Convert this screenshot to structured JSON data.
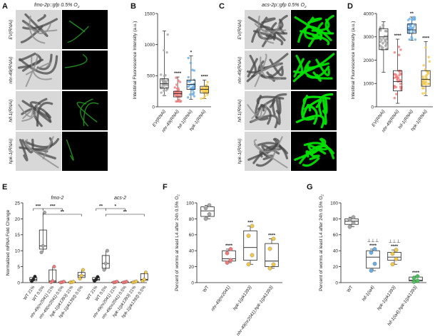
{
  "panel_letters": [
    "A",
    "B",
    "C",
    "D",
    "E",
    "F",
    "G"
  ],
  "micrographs": {
    "A": {
      "title": "fmo-2p::gfp 0.5% O2",
      "rows": [
        "EV(RNAi)",
        "nhr-49(RNAi)",
        "hif-1(RNAi)",
        "hpk-1(RNAi)"
      ]
    },
    "C": {
      "title": "acs-2p::gfp 0.5% O2",
      "rows": [
        "EV(RNAi)",
        "nhr-49(RNAi)",
        "hif-1(RNAi)",
        "hpk-1(RNAi)"
      ]
    }
  },
  "colors": {
    "gray": "#a6a6a6",
    "pink": "#f07a7a",
    "blue": "#6aaee6",
    "yellow": "#f2c84b",
    "green": "#4bbf5a",
    "gfp": "#00e000"
  },
  "chart_data": [
    {
      "panel": "B",
      "type": "box",
      "categories": [
        "EV(RNAi)",
        "nhr-49(RNAi)",
        "hif-1(RNAi)",
        "hpk-1(RNAi)"
      ],
      "ylabel": "Intestinal Fluorescence Intensity (a.u.)",
      "ylim": [
        0,
        1500
      ],
      "yticks": [
        0,
        500,
        1000,
        1500
      ],
      "boxes": [
        {
          "min": 180,
          "q1": 300,
          "median": 370,
          "q3": 450,
          "max": 1220
        },
        {
          "min": 80,
          "q1": 160,
          "median": 210,
          "q3": 250,
          "max": 480
        },
        {
          "min": 120,
          "q1": 280,
          "median": 360,
          "q3": 430,
          "max": 820
        },
        {
          "min": 130,
          "q1": 220,
          "median": 280,
          "q3": 330,
          "max": 430
        }
      ],
      "significance": [
        "",
        "****",
        "*",
        "****"
      ]
    },
    {
      "panel": "D",
      "type": "box",
      "categories": [
        "EV(RNAi)",
        "nhr-49(RNAi)",
        "hif-1(RNAi)",
        "hpk-1(RNAi)"
      ],
      "ylabel": "Intestinal Fluorescence Intensity (a.u.)",
      "ylim": [
        0,
        4000
      ],
      "yticks": [
        0,
        1000,
        2000,
        3000,
        4000
      ],
      "boxes": [
        {
          "min": 1480,
          "q1": 2450,
          "median": 3000,
          "q3": 3350,
          "max": 3650
        },
        {
          "min": 150,
          "q1": 680,
          "median": 1080,
          "q3": 1550,
          "max": 2900
        },
        {
          "min": 2850,
          "q1": 3150,
          "median": 3300,
          "q3": 3550,
          "max": 3850
        },
        {
          "min": 480,
          "q1": 880,
          "median": 1180,
          "q3": 1550,
          "max": 2800
        }
      ],
      "significance": [
        "",
        "****",
        "**",
        "****"
      ]
    },
    {
      "panel": "E",
      "type": "box",
      "group_titles": [
        "fmo-2",
        "acs-2"
      ],
      "categories": [
        "WT 21%",
        "WT 0.5%",
        "nhr-49(nr2041) 21%",
        "nhr-49(nr2041) 0.5%",
        "hpk-1(pk1393) 21%",
        "hpk-1(pk1393) 0.5%"
      ],
      "ylabel": "Normalized mRNA Fold Change",
      "ylim": [
        0,
        25
      ],
      "yticks": [
        0,
        5,
        10,
        15,
        20,
        25
      ],
      "groups": [
        {
          "name": "fmo-2",
          "boxes": [
            {
              "min": 0.4,
              "q1": 0.6,
              "median": 1.0,
              "q3": 1.6,
              "max": 1.9
            },
            {
              "min": 9.5,
              "q1": 10.5,
              "median": 11.5,
              "q3": 16.5,
              "max": 22.0
            },
            {
              "min": 0.1,
              "q1": 0.2,
              "median": 0.5,
              "q3": 4.0,
              "max": 5.0
            },
            {
              "min": 0.05,
              "q1": 0.1,
              "median": 0.15,
              "q3": 0.2,
              "max": 0.3
            },
            {
              "min": 0.05,
              "q1": 0.1,
              "median": 0.15,
              "q3": 0.2,
              "max": 0.3
            },
            {
              "min": 1.2,
              "q1": 1.6,
              "median": 2.2,
              "q3": 3.2,
              "max": 4.0
            }
          ]
        },
        {
          "name": "acs-2",
          "boxes": [
            {
              "min": 0.5,
              "q1": 0.7,
              "median": 1.0,
              "q3": 1.6,
              "max": 1.8
            },
            {
              "min": 4.0,
              "q1": 4.5,
              "median": 6.0,
              "q3": 8.5,
              "max": 10.0
            },
            {
              "min": 0.05,
              "q1": 0.1,
              "median": 0.15,
              "q3": 0.2,
              "max": 0.3
            },
            {
              "min": 0.05,
              "q1": 0.1,
              "median": 0.15,
              "q3": 0.2,
              "max": 0.3
            },
            {
              "min": 0.05,
              "q1": 0.1,
              "median": 0.2,
              "q3": 0.3,
              "max": 0.4
            },
            {
              "min": 0.5,
              "q1": 0.7,
              "median": 1.0,
              "q3": 2.8,
              "max": 3.2
            }
          ]
        }
      ],
      "brackets": [
        "***",
        "***",
        "**",
        "**",
        "*",
        "**"
      ]
    },
    {
      "panel": "F",
      "type": "box",
      "categories": [
        "WT",
        "nhr-49(nr2041)",
        "hpk-1(pk1393)",
        "nhr-49(nr2041);hpk-1(pk1393)"
      ],
      "ylabel": "Percent of worms at least L4 after 24h 0.5% O2",
      "ylim": [
        0,
        100
      ],
      "yticks": [
        0,
        20,
        40,
        60,
        80,
        100
      ],
      "boxes": [
        {
          "min": 80,
          "q1": 83,
          "median": 90,
          "q3": 95,
          "max": 97
        },
        {
          "min": 25,
          "q1": 27,
          "median": 30,
          "q3": 40,
          "max": 42
        },
        {
          "min": 23,
          "q1": 28,
          "median": 44,
          "q3": 65,
          "max": 71
        },
        {
          "min": 18,
          "q1": 20,
          "median": 27,
          "q3": 49,
          "max": 55
        }
      ],
      "significance": [
        "",
        "****",
        "***",
        "****"
      ]
    },
    {
      "panel": "G",
      "type": "box",
      "categories": [
        "WT",
        "hif-1(ia4)",
        "hpk-1(pk1393)",
        "hif-1(ia4);hpk-1(pk1393)"
      ],
      "ylabel": "Percent of worms at least L4 after 24h 0.5% O2",
      "ylim": [
        0,
        100
      ],
      "yticks": [
        0,
        20,
        40,
        60,
        80,
        100
      ],
      "boxes": [
        {
          "min": 70,
          "q1": 73,
          "median": 77,
          "q3": 80,
          "max": 82
        },
        {
          "min": 15,
          "q1": 18,
          "median": 32,
          "q3": 40,
          "max": 42
        },
        {
          "min": 23,
          "q1": 28,
          "median": 32,
          "q3": 38,
          "max": 41
        },
        {
          "min": 1,
          "q1": 2,
          "median": 3,
          "q3": 7,
          "max": 8
        }
      ],
      "significance": [
        "",
        "****",
        "****",
        "****"
      ],
      "extra_marks": [
        "⊥⊥⊥",
        "⊥⊥⊥"
      ]
    }
  ]
}
